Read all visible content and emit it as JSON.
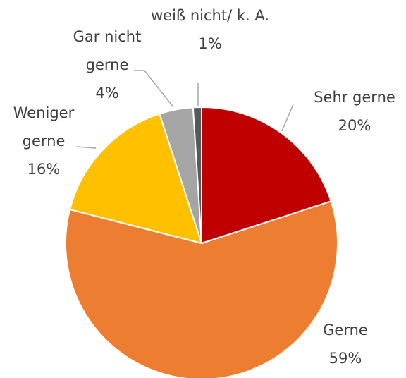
{
  "chart_data": {
    "type": "pie",
    "categories": [
      "Sehr gerne",
      "Gerne",
      "Weniger gerne",
      "Gar nicht gerne",
      "weiß nicht/ k. A."
    ],
    "values": [
      20,
      59,
      16,
      4,
      1
    ],
    "value_labels": [
      "20%",
      "59%",
      "16%",
      "4%",
      "1%"
    ],
    "colors": [
      "#c00000",
      "#ed7d31",
      "#ffc000",
      "#a5a5a5",
      "#595959"
    ]
  }
}
